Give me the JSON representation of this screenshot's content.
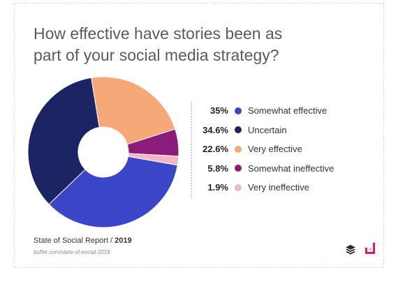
{
  "chart_data": {
    "type": "pie",
    "title": "How effective have stories been as part of your social media strategy?",
    "donut": true,
    "legend_position": "right",
    "slices": [
      {
        "label": "Somewhat effective",
        "value": 35,
        "display": "35%",
        "color": "#3a45c8"
      },
      {
        "label": "Uncertain",
        "value": 34.6,
        "display": "34.6%",
        "color": "#1c2463"
      },
      {
        "label": "Very effective",
        "value": 22.6,
        "display": "22.6%",
        "color": "#f6a878"
      },
      {
        "label": "Somewhat ineffective",
        "value": 5.8,
        "display": "5.8%",
        "color": "#8c1c7a"
      },
      {
        "label": "Very ineffective",
        "value": 1.9,
        "display": "1.9%",
        "color": "#f4b6c6"
      }
    ]
  },
  "footer": {
    "report": "State of Social Report / ",
    "year": "2019",
    "url": "buffer.com/state-of-social-2019"
  },
  "logos": {
    "buffer": "buffer-icon",
    "brand": "brand-logo-icon"
  }
}
